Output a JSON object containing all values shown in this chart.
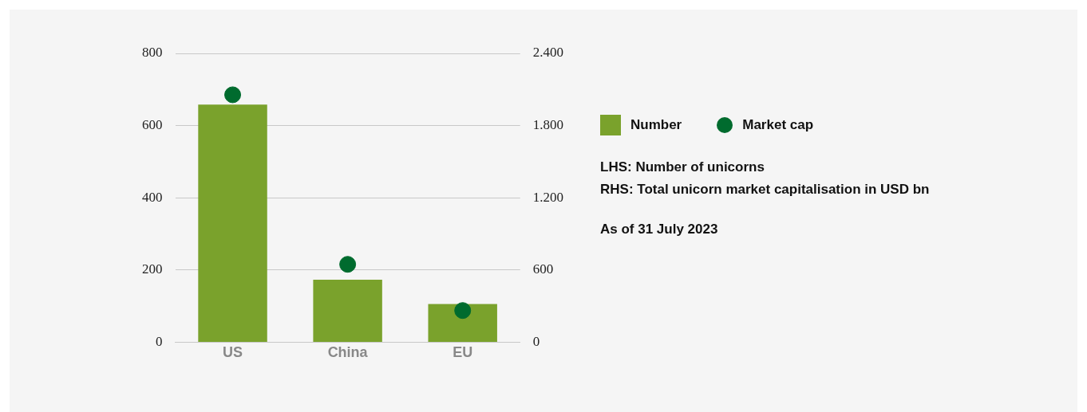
{
  "chart_data": {
    "type": "bar",
    "categories": [
      "US",
      "China",
      "EU"
    ],
    "series": [
      {
        "name": "Number",
        "color": "#7aa22c",
        "values": [
          658,
          173,
          106
        ]
      },
      {
        "name": "Market cap",
        "type": "scatter",
        "axis": "y2",
        "color": "#006b2e",
        "x": [
          "US",
          "China",
          "EU"
        ],
        "values": [
          2056,
          647,
          263
        ]
      }
    ],
    "ylim": [
      0,
      800
    ],
    "yticks": [
      0,
      200,
      400,
      600,
      800
    ],
    "y2lim": [
      0,
      2400
    ],
    "y2ticks": [
      0,
      {
        "value": 600,
        "label": "600"
      },
      {
        "value": 1200,
        "label": "1.200"
      },
      {
        "value": 1800,
        "label": "1.800"
      },
      {
        "value": 2400,
        "label": "2.400"
      }
    ],
    "grid": "y",
    "legend": "right",
    "marker": "circle",
    "annotations": [
      "LHS: Number of unicorns",
      "RHS: Total unicorn market capitalisation in USD bn",
      "As of 31 July 2023"
    ]
  }
}
